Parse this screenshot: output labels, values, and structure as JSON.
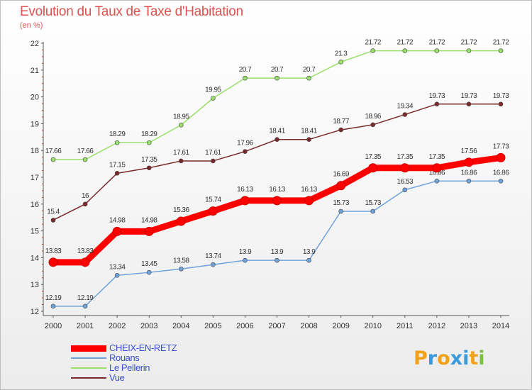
{
  "title": "Evolution du Taux de Taxe d'Habitation",
  "subtitle": "(en %)",
  "chart_data": {
    "type": "line",
    "title": "Evolution du Taux de Taxe d'Habitation",
    "ylabel": "(en %)",
    "xlabel": "",
    "x": [
      "2000",
      "2001",
      "2002",
      "2003",
      "2004",
      "2005",
      "2006",
      "2007",
      "2008",
      "2009",
      "2010",
      "2011",
      "2012",
      "2013",
      "2014"
    ],
    "ylim": [
      12,
      22
    ],
    "yticks": [
      12,
      13,
      14,
      15,
      16,
      17,
      18,
      19,
      20,
      21,
      22
    ],
    "grid": false,
    "legend": "bottom-left",
    "series": [
      {
        "name": "CHEIX-EN-RETZ",
        "color": "#ff0000",
        "values": [
          13.83,
          13.83,
          14.98,
          14.98,
          15.36,
          15.74,
          16.13,
          16.13,
          16.13,
          16.69,
          17.35,
          17.35,
          17.35,
          17.56,
          17.73
        ]
      },
      {
        "name": "Rouans",
        "color": "#6fa3d9",
        "values": [
          12.19,
          12.19,
          13.34,
          13.45,
          13.58,
          13.74,
          13.9,
          13.9,
          13.9,
          15.73,
          15.73,
          16.53,
          16.86,
          16.86,
          16.86
        ]
      },
      {
        "name": "Le Pellerin",
        "color": "#99e06a",
        "values": [
          17.66,
          17.66,
          18.29,
          18.29,
          18.95,
          19.95,
          20.7,
          20.7,
          20.7,
          21.3,
          21.72,
          21.72,
          21.72,
          21.72,
          21.72
        ]
      },
      {
        "name": "Vue",
        "color": "#7a2a2a",
        "values": [
          15.4,
          16,
          17.15,
          17.35,
          17.61,
          17.61,
          17.96,
          18.41,
          18.41,
          18.77,
          18.96,
          19.34,
          19.73,
          19.73,
          19.73
        ]
      }
    ],
    "data_labels": [
      [
        "13.83",
        "13.83",
        "14.98",
        "14.98",
        "15.36",
        "15.74",
        "16.13",
        "16.13",
        "16.13",
        "16.69",
        "17.35",
        "17.35",
        "17.35",
        "17.56",
        "17.73"
      ],
      [
        "12.19",
        "12.19",
        "13.34",
        "13.45",
        "13.58",
        "13.74",
        "13.9",
        "13.9",
        "13.9",
        "15.73",
        "15.73",
        "16.53",
        "16.86",
        "16.86",
        "16.86"
      ],
      [
        "17.66",
        "17.66",
        "18.29",
        "18.29",
        "18.95",
        "19.95",
        "20.7",
        "20.7",
        "20.7",
        "21.3",
        "21.72",
        "21.72",
        "21.72",
        "21.72",
        "21.72"
      ],
      [
        "15.4",
        "16",
        "17.15",
        "17.35",
        "17.61",
        "17.61",
        "17.96",
        "18.41",
        "18.41",
        "18.77",
        "18.96",
        "19.34",
        "19.73",
        "19.73",
        "19.73"
      ]
    ]
  },
  "logo": {
    "text": "Proxiti",
    "letters": [
      "P",
      "r",
      "o",
      "x",
      "i",
      "t",
      "i"
    ],
    "colors": [
      "#f2a21a",
      "#3b9ad9",
      "#f2a21a",
      "#3b9ad9",
      "#3b9ad9",
      "#f2a21a",
      "#7ac143"
    ]
  }
}
